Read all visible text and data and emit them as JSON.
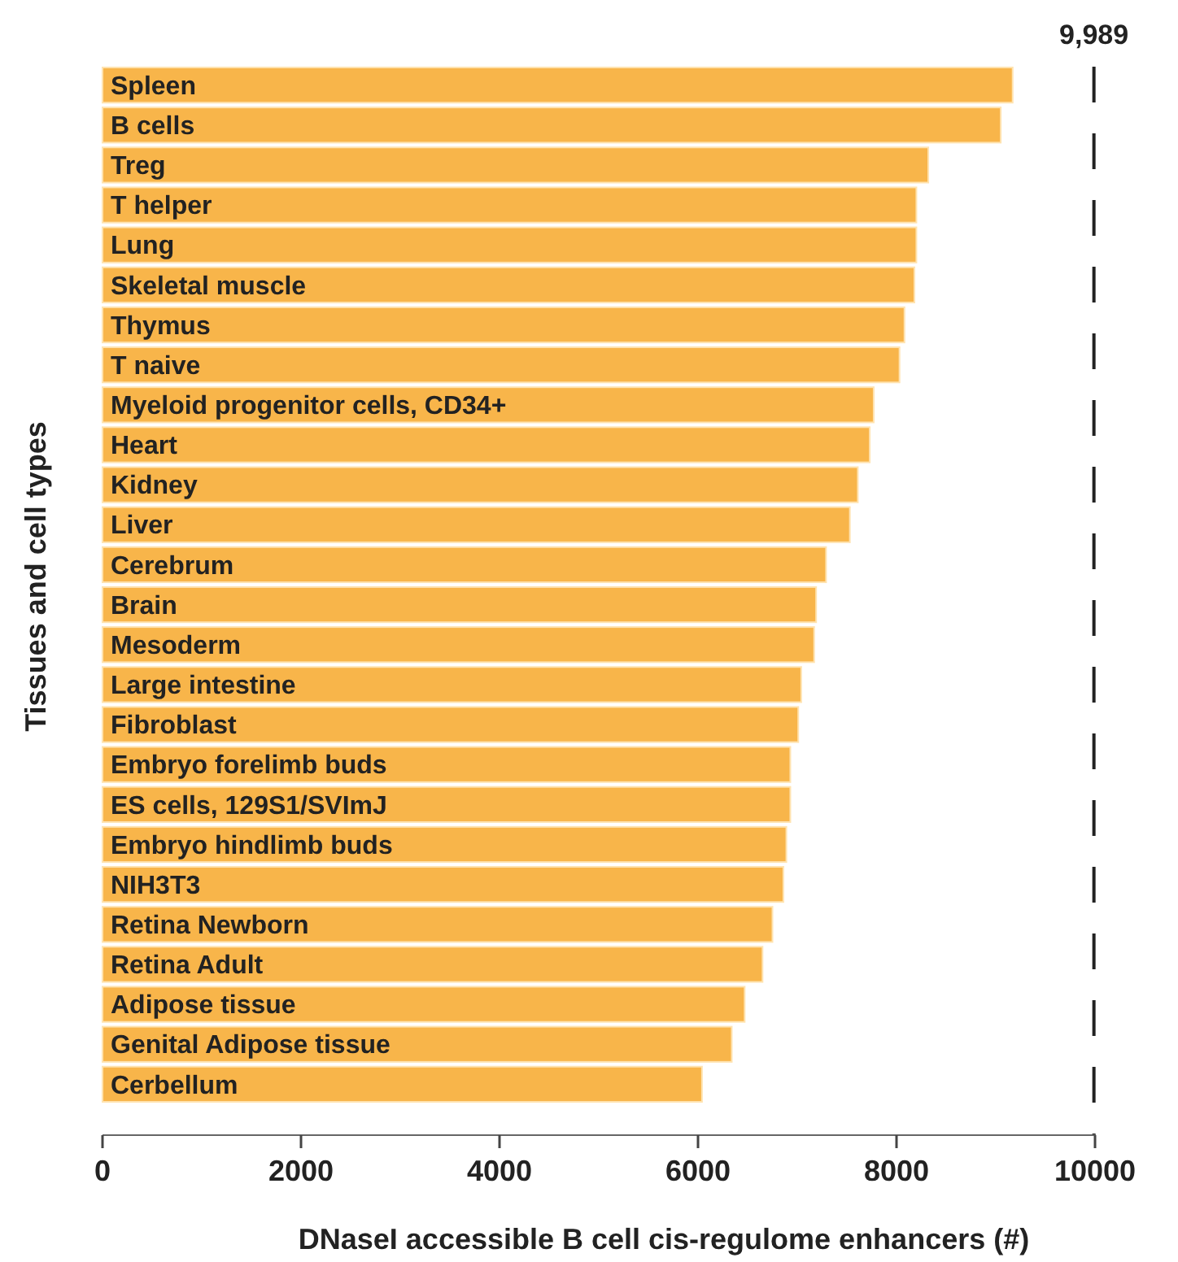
{
  "chart_data": {
    "type": "bar",
    "orientation": "horizontal",
    "xlabel": "DNaseI accessible B cell cis-regulome enhancers  (#)",
    "ylabel": "Tissues and cell types",
    "categories": [
      "Spleen",
      "B cells",
      "Treg",
      "T helper",
      "Lung",
      "Skeletal muscle",
      "Thymus",
      "T naive",
      "Myeloid progenitor cells, CD34+",
      "Heart",
      "Kidney",
      "Liver",
      "Cerebrum",
      "Brain",
      "Mesoderm",
      "Large intestine",
      "Fibroblast",
      "Embryo forelimb buds",
      "ES cells, 129S1/SVImJ",
      "Embryo hindlimb buds",
      "NIH3T3",
      "Retina Newborn",
      "Retina Adult",
      "Adipose tissue",
      "Genital Adipose tissue",
      "Cerbellum"
    ],
    "values": [
      9170,
      9050,
      8320,
      8200,
      8200,
      8180,
      8080,
      8030,
      7770,
      7730,
      7610,
      7530,
      7290,
      7190,
      7170,
      7040,
      7010,
      6930,
      6930,
      6890,
      6860,
      6750,
      6650,
      6470,
      6340,
      6040
    ],
    "color": "#f8b54a",
    "xlim": [
      0,
      10000
    ],
    "xticks": [
      0,
      2000,
      4000,
      6000,
      8000,
      10000
    ],
    "ref_lines": [
      {
        "axis": "x",
        "value": 9989,
        "label": "9,989",
        "color": "#222222",
        "line_style": "dashed"
      }
    ],
    "grid": false
  }
}
